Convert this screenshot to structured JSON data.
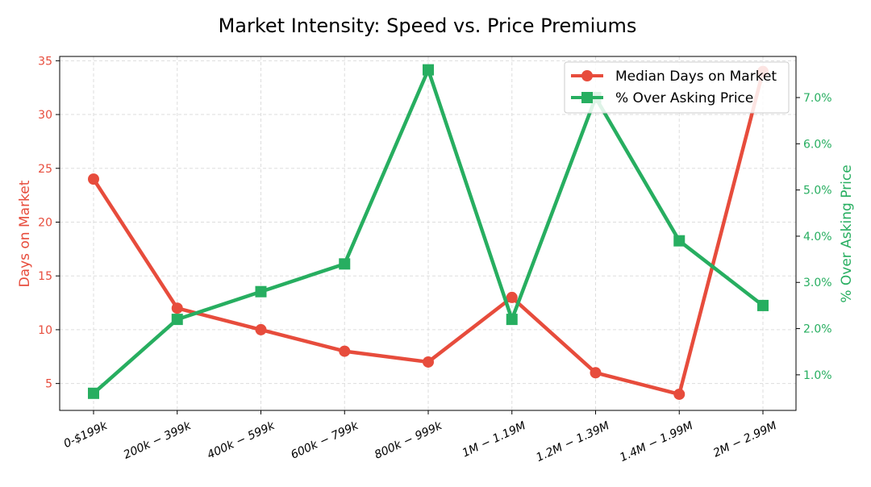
{
  "chart_data": {
    "type": "line",
    "title": "Market Intensity: Speed vs. Price Premiums",
    "categories": [
      "0-$199k",
      "200k − 399k",
      "400k − 599k",
      "600k − 799k",
      "800k − 999k",
      "1M − 1.19M",
      "1.2M − 1.39M",
      "1.4M − 1.99M",
      "2M − 2.99M"
    ],
    "ylabel_left": "Days on Market",
    "ylabel_right": "% Over Asking Price",
    "ylim_left": [
      2.5,
      35.4
    ],
    "ylim_right": [
      0.23,
      7.89
    ],
    "yticks_left": [
      5,
      10,
      15,
      20,
      25,
      30,
      35
    ],
    "yticks_right": [
      "1.0%",
      "2.0%",
      "3.0%",
      "4.0%",
      "5.0%",
      "6.0%",
      "7.0%"
    ],
    "yticks_right_values": [
      1,
      2,
      3,
      4,
      5,
      6,
      7
    ],
    "grid": true,
    "legend_position": "top-right",
    "series": [
      {
        "name": "Median Days on Market",
        "axis": "left",
        "marker": "circle",
        "color": "#E74C3C",
        "values": [
          24,
          12,
          10,
          8,
          7,
          13,
          6,
          4,
          34
        ]
      },
      {
        "name": "% Over Asking Price",
        "axis": "right",
        "marker": "square",
        "color": "#27AE60",
        "values": [
          0.6,
          2.2,
          2.8,
          3.4,
          7.6,
          2.2,
          7.0,
          3.9,
          2.5
        ]
      }
    ]
  }
}
